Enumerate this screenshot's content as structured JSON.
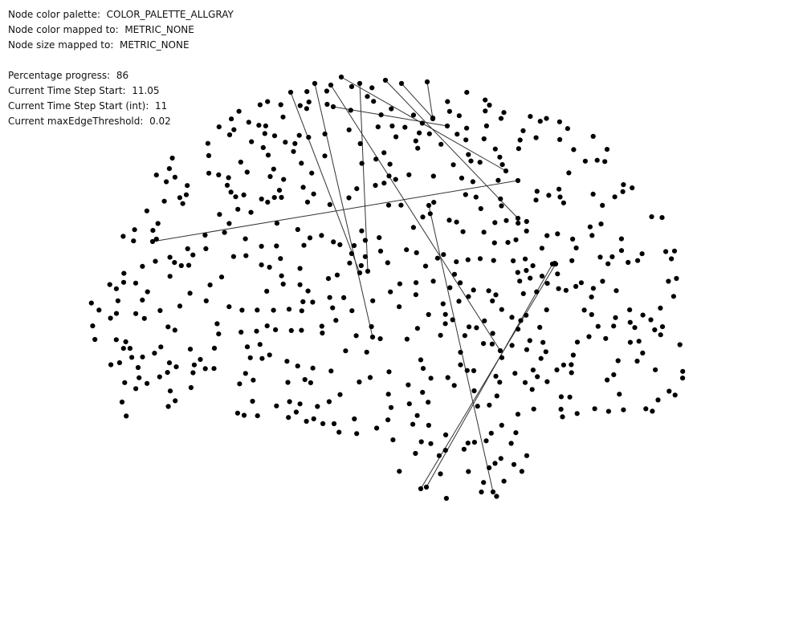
{
  "info": {
    "palette_label": "Node color palette:",
    "palette_value": "COLOR_PALETTE_ALLGRAY",
    "color_mapped_label": "Node color mapped to:",
    "color_mapped_value": "METRIC_NONE",
    "size_mapped_label": "Node size mapped to:",
    "size_mapped_value": "METRIC_NONE",
    "progress_label": "Percentage progress:",
    "progress_value": "86",
    "time_start_label": "Current Time Step Start:",
    "time_start_value": "11.05",
    "time_start_int_label": "Current Time Step Start (int):",
    "time_start_int_value": "11",
    "threshold_label": "Current maxEdgeThreshold:",
    "threshold_value": "0.02"
  },
  "style": {
    "node_color": "#000000",
    "edge_color": "#333333"
  }
}
